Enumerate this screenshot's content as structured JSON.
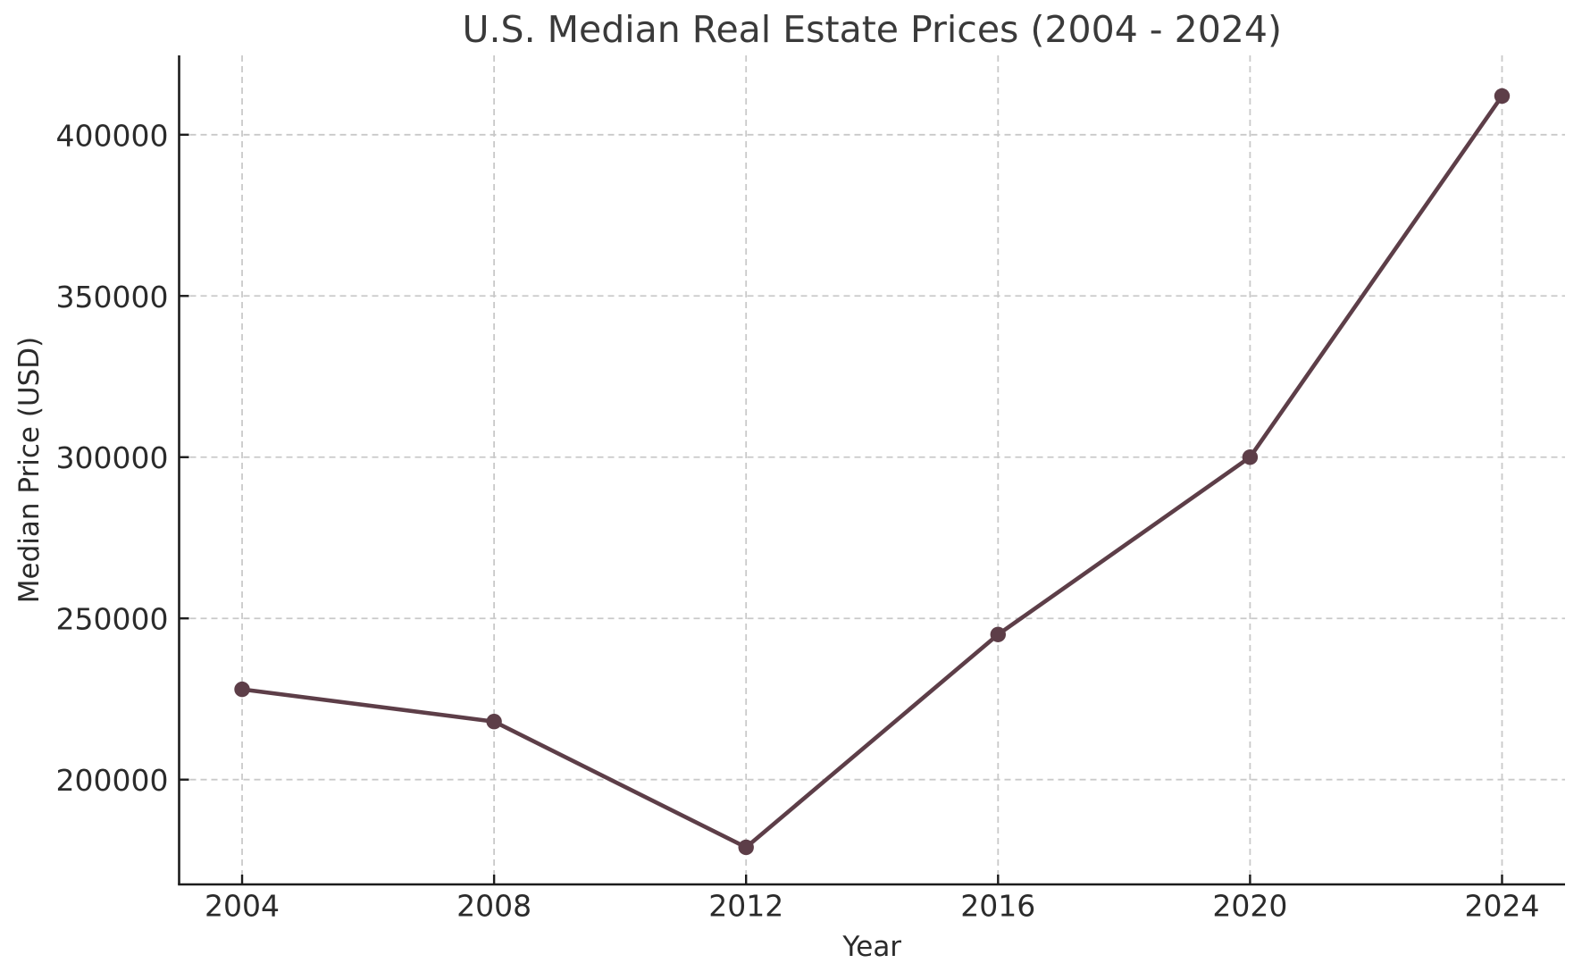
{
  "chart_data": {
    "type": "line",
    "title": "U.S. Median Real Estate Prices (2004 - 2024)",
    "xlabel": "Year",
    "ylabel": "Median Price (USD)",
    "x": [
      2004,
      2008,
      2012,
      2016,
      2020,
      2024
    ],
    "series": [
      {
        "name": "Median Price",
        "values": [
          228000,
          218000,
          179000,
          245000,
          300000,
          412000
        ]
      }
    ],
    "xticks": [
      2004,
      2008,
      2012,
      2016,
      2020,
      2024
    ],
    "yticks": [
      200000,
      250000,
      300000,
      350000,
      400000
    ],
    "xlim": [
      2003,
      2025
    ],
    "ylim": [
      167500,
      424600
    ],
    "grid": true,
    "grid_style": "dashed",
    "legend": "none",
    "marker": "circle",
    "colors": {
      "line": "#5D3E48",
      "marker": "#5D3E48",
      "grid": "#c9c9c9",
      "spine": "#1c1c1c",
      "text": "#2b2b2b",
      "background": "#ffffff"
    }
  }
}
